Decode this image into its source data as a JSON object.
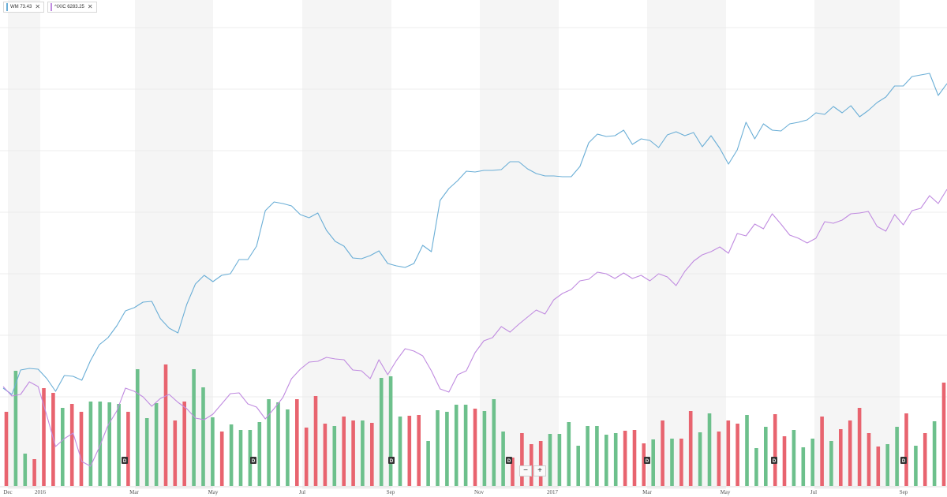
{
  "legend": [
    {
      "label": "WM 73.43",
      "color": "#6aaed6",
      "close": "✕"
    },
    {
      "label": "^IXIC 6283.25",
      "color": "#c08be0",
      "close": "✕"
    }
  ],
  "zoom": {
    "minus": "−",
    "plus": "+"
  },
  "chart_data": {
    "type": "line",
    "x_ticks": [
      "Dec",
      "2016",
      "Mar",
      "May",
      "Jul",
      "Sep",
      "Nov",
      "2017",
      "Mar",
      "May",
      "Jul",
      "Sep"
    ],
    "series": [
      {
        "name": "WM 73.43",
        "color": "#6aaed6",
        "values": [
          492,
          500,
          469,
          467,
          468,
          480,
          496,
          476,
          477,
          482,
          457,
          437,
          428,
          413,
          394,
          390,
          383,
          382,
          404,
          416,
          422,
          386,
          360,
          349,
          357,
          349,
          347,
          329,
          329,
          312,
          267,
          256,
          258,
          261,
          272,
          276,
          270,
          292,
          306,
          312,
          327,
          328,
          324,
          318,
          334,
          337,
          339,
          334,
          311,
          319,
          254,
          239,
          229,
          217,
          218,
          216,
          216,
          215,
          205,
          205,
          214,
          220,
          223,
          223,
          224,
          224,
          211,
          181,
          170,
          173,
          172,
          165,
          183,
          176,
          178,
          187,
          171,
          167,
          172,
          168,
          186,
          172,
          188,
          208,
          190,
          155,
          176,
          157,
          165,
          166,
          157,
          155,
          152,
          143,
          145,
          135,
          143,
          134,
          148,
          140,
          130,
          123,
          109,
          109,
          97,
          95,
          93,
          121,
          106
        ]
      },
      {
        "name": "^IXIC 6283.25",
        "color": "#c08be0",
        "values": [
          490,
          502,
          500,
          484,
          490,
          527,
          566,
          556,
          549,
          585,
          591,
          567,
          539,
          521,
          492,
          496,
          503,
          515,
          505,
          500,
          510,
          518,
          530,
          532,
          525,
          512,
          499,
          498,
          512,
          516,
          531,
          518,
          504,
          480,
          468,
          459,
          458,
          453,
          455,
          456,
          469,
          470,
          480,
          456,
          475,
          457,
          442,
          445,
          451,
          470,
          493,
          497,
          475,
          470,
          447,
          432,
          428,
          414,
          421,
          411,
          402,
          393,
          398,
          380,
          372,
          367,
          356,
          354,
          345,
          347,
          353,
          346,
          353,
          349,
          356,
          347,
          351,
          362,
          344,
          331,
          323,
          319,
          313,
          321,
          296,
          299,
          284,
          290,
          271,
          284,
          298,
          302,
          308,
          302,
          281,
          283,
          279,
          271,
          270,
          268,
          287,
          293,
          272,
          285,
          267,
          264,
          248,
          258,
          240
        ]
      }
    ],
    "volume": {
      "colors": {
        "up": "#6dc08c",
        "down": "#e8646f"
      },
      "values": [
        [
          522,
          "down"
        ],
        [
          470,
          "up"
        ],
        [
          575,
          "up"
        ],
        [
          582,
          "down"
        ],
        [
          492,
          "down"
        ],
        [
          498,
          "down"
        ],
        [
          517,
          "up"
        ],
        [
          512,
          "down"
        ],
        [
          522,
          "down"
        ],
        [
          509,
          "up"
        ],
        [
          509,
          "up"
        ],
        [
          510,
          "up"
        ],
        [
          512,
          "up"
        ],
        [
          522,
          "down"
        ],
        [
          468,
          "up"
        ],
        [
          530,
          "up"
        ],
        [
          511,
          "up"
        ],
        [
          462,
          "down"
        ],
        [
          533,
          "down"
        ],
        [
          509,
          "down"
        ],
        [
          468,
          "up"
        ],
        [
          491,
          "up"
        ],
        [
          529,
          "up"
        ],
        [
          547,
          "down"
        ],
        [
          538,
          "up"
        ],
        [
          545,
          "up"
        ],
        [
          545,
          "up"
        ],
        [
          535,
          "up"
        ],
        [
          506,
          "up"
        ],
        [
          510,
          "up"
        ],
        [
          519,
          "up"
        ],
        [
          506,
          "down"
        ],
        [
          542,
          "down"
        ],
        [
          502,
          "down"
        ],
        [
          537,
          "down"
        ],
        [
          540,
          "up"
        ],
        [
          528,
          "down"
        ],
        [
          533,
          "down"
        ],
        [
          533,
          "up"
        ],
        [
          536,
          "down"
        ],
        [
          479,
          "up"
        ],
        [
          477,
          "up"
        ],
        [
          528,
          "up"
        ],
        [
          527,
          "down"
        ],
        [
          526,
          "down"
        ],
        [
          559,
          "up"
        ],
        [
          520,
          "up"
        ],
        [
          522,
          "up"
        ],
        [
          513,
          "up"
        ],
        [
          513,
          "up"
        ],
        [
          518,
          "down"
        ],
        [
          521,
          "up"
        ],
        [
          506,
          "up"
        ],
        [
          547,
          "up"
        ],
        [
          580,
          "down"
        ],
        [
          549,
          "down"
        ],
        [
          563,
          "down"
        ],
        [
          559,
          "down"
        ],
        [
          550,
          "up"
        ],
        [
          550,
          "up"
        ],
        [
          535,
          "up"
        ],
        [
          565,
          "up"
        ],
        [
          540,
          "up"
        ],
        [
          540,
          "up"
        ],
        [
          551,
          "up"
        ],
        [
          549,
          "up"
        ],
        [
          546,
          "down"
        ],
        [
          545,
          "down"
        ],
        [
          562,
          "down"
        ],
        [
          557,
          "up"
        ],
        [
          533,
          "down"
        ],
        [
          556,
          "up"
        ],
        [
          556,
          "down"
        ],
        [
          521,
          "down"
        ],
        [
          548,
          "up"
        ],
        [
          524,
          "up"
        ],
        [
          547,
          "down"
        ],
        [
          533,
          "down"
        ],
        [
          537,
          "down"
        ],
        [
          526,
          "up"
        ],
        [
          568,
          "up"
        ],
        [
          541,
          "up"
        ],
        [
          525,
          "down"
        ],
        [
          553,
          "down"
        ],
        [
          545,
          "up"
        ],
        [
          567,
          "up"
        ],
        [
          556,
          "up"
        ],
        [
          528,
          "down"
        ],
        [
          559,
          "up"
        ],
        [
          544,
          "down"
        ],
        [
          533,
          "down"
        ],
        [
          517,
          "down"
        ],
        [
          549,
          "down"
        ],
        [
          566,
          "down"
        ],
        [
          563,
          "up"
        ],
        [
          541,
          "up"
        ],
        [
          524,
          "down"
        ],
        [
          565,
          "up"
        ],
        [
          549,
          "down"
        ],
        [
          534,
          "up"
        ],
        [
          485,
          "down"
        ]
      ]
    },
    "events": [
      {
        "label": "D"
      },
      {
        "label": "D"
      },
      {
        "label": "D"
      },
      {
        "label": "D"
      },
      {
        "label": "D"
      },
      {
        "label": "D"
      },
      {
        "label": "D"
      }
    ]
  }
}
